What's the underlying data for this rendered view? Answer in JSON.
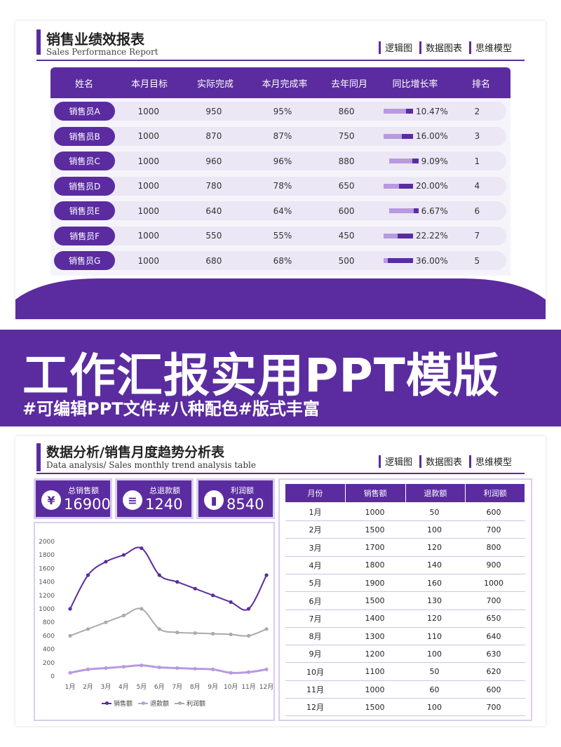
{
  "colors": {
    "accent": "#5a2ca0",
    "accent_light": "#b79ae0",
    "row_bg": "#ebe7f5",
    "gray_line": "#aaaaaa"
  },
  "nav": [
    "逻辑图",
    "数据图表",
    "思维模型"
  ],
  "slide1": {
    "title": "销售业绩效报表",
    "subtitle": "Sales Performance Report",
    "headers": [
      "姓名",
      "本月目标",
      "实际完成",
      "本月完成率",
      "去年同月",
      "同比增长率",
      "排名"
    ],
    "rows": [
      {
        "name": "销售员A",
        "target": "1000",
        "actual": "950",
        "rate": "95%",
        "last_year": "860",
        "growth": "10.47%",
        "growth_value": 0.1047,
        "rank": "2"
      },
      {
        "name": "销售员B",
        "target": "1000",
        "actual": "870",
        "rate": "87%",
        "last_year": "750",
        "growth": "16.00%",
        "growth_value": 0.16,
        "rank": "3"
      },
      {
        "name": "销售员C",
        "target": "1000",
        "actual": "960",
        "rate": "96%",
        "last_year": "880",
        "growth": "9.09%",
        "growth_value": 0.0909,
        "rank": "1"
      },
      {
        "name": "销售员D",
        "target": "1000",
        "actual": "780",
        "rate": "78%",
        "last_year": "650",
        "growth": "20.00%",
        "growth_value": 0.2,
        "rank": "4"
      },
      {
        "name": "销售员E",
        "target": "1000",
        "actual": "640",
        "rate": "64%",
        "last_year": "600",
        "growth": "6.67%",
        "growth_value": 0.0667,
        "rank": "6"
      },
      {
        "name": "销售员F",
        "target": "1000",
        "actual": "550",
        "rate": "55%",
        "last_year": "450",
        "growth": "22.22%",
        "growth_value": 0.2222,
        "rank": "7"
      },
      {
        "name": "销售员G",
        "target": "1000",
        "actual": "680",
        "rate": "68%",
        "last_year": "500",
        "growth": "36.00%",
        "growth_value": 0.36,
        "rank": "5"
      }
    ]
  },
  "banner": {
    "title": "工作汇报实用PPT模版",
    "subtitle": "#可编辑PPT文件#八种配色#版式丰富"
  },
  "slide2": {
    "title": "数据分析/销售月度趋势分析表",
    "subtitle": "Data analysis/  Sales monthly trend analysis table",
    "stats": [
      {
        "label": "总销售额",
        "value": "16900",
        "icon": "yen-icon",
        "glyph": "¥"
      },
      {
        "label": "总退款额",
        "value": "1240",
        "icon": "coins-icon",
        "glyph": "≡"
      },
      {
        "label": "利润额",
        "value": "8540",
        "icon": "bar-chart-icon",
        "glyph": "▮"
      }
    ],
    "table_headers": [
      "月份",
      "销售额",
      "退款额",
      "利润额"
    ],
    "table_rows": [
      [
        "1月",
        "1000",
        "50",
        "600"
      ],
      [
        "2月",
        "1500",
        "100",
        "700"
      ],
      [
        "3月",
        "1700",
        "120",
        "800"
      ],
      [
        "4月",
        "1800",
        "140",
        "900"
      ],
      [
        "5月",
        "1900",
        "160",
        "1000"
      ],
      [
        "6月",
        "1500",
        "130",
        "700"
      ],
      [
        "7月",
        "1400",
        "120",
        "650"
      ],
      [
        "8月",
        "1300",
        "110",
        "640"
      ],
      [
        "9月",
        "1200",
        "100",
        "630"
      ],
      [
        "10月",
        "1100",
        "50",
        "620"
      ],
      [
        "11月",
        "1000",
        "60",
        "600"
      ],
      [
        "12月",
        "1500",
        "100",
        "700"
      ]
    ]
  },
  "chart_data": {
    "type": "line",
    "title": "",
    "xlabel": "",
    "ylabel": "",
    "categories": [
      "1月",
      "2月",
      "3月",
      "4月",
      "5月",
      "6月",
      "7月",
      "8月",
      "9月",
      "10月",
      "11月",
      "12月"
    ],
    "yticks": [
      "0",
      "200",
      "400",
      "600",
      "800",
      "1000",
      "1200",
      "1400",
      "1600",
      "1800",
      "2000"
    ],
    "ylim": [
      0,
      2000
    ],
    "grid": false,
    "legend": "bottom",
    "series": [
      {
        "name": "销售额",
        "color": "#5a2ca0",
        "values": [
          1000,
          1500,
          1700,
          1800,
          1900,
          1500,
          1400,
          1300,
          1200,
          1100,
          1000,
          1500
        ]
      },
      {
        "name": "退款额",
        "color": "#b79ae0",
        "values": [
          50,
          100,
          120,
          140,
          160,
          130,
          120,
          110,
          100,
          50,
          60,
          100
        ]
      },
      {
        "name": "利润额",
        "color": "#aaaaaa",
        "values": [
          600,
          700,
          800,
          900,
          1000,
          700,
          650,
          640,
          630,
          620,
          600,
          700
        ]
      }
    ]
  }
}
